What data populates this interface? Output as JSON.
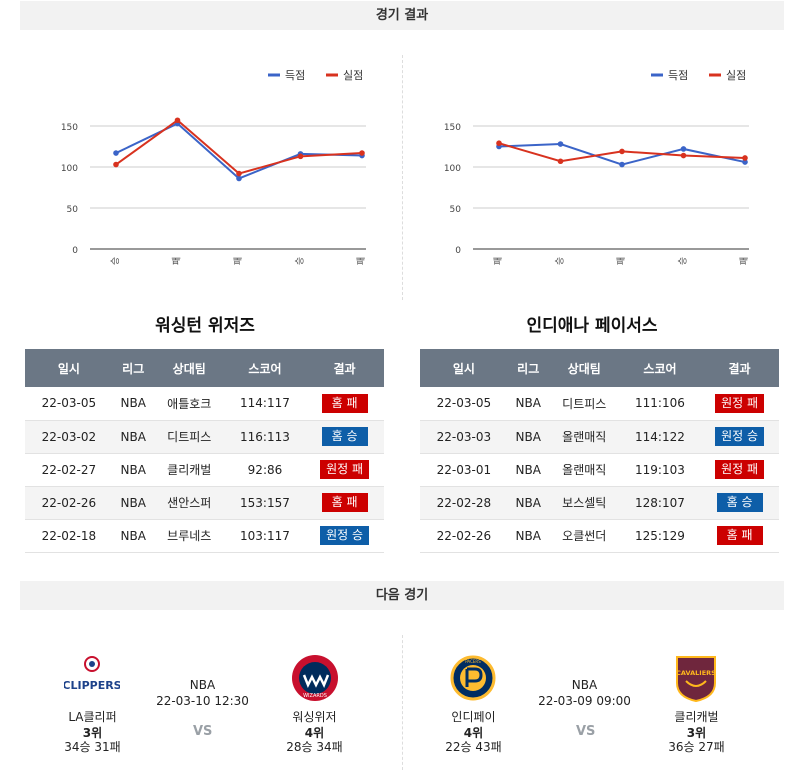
{
  "sections": {
    "results_title": "경기 결과",
    "next_title": "다음 경기"
  },
  "charts": [
    {
      "legend": {
        "scored": "득점",
        "conceded": "실점"
      },
      "colors": {
        "scored": "#3b64c8",
        "conceded": "#d8321f"
      },
      "y_ticks": [
        "0",
        "50",
        "100",
        "150"
      ],
      "x_labels": [
        "승",
        "패",
        "패",
        "승",
        "패"
      ]
    },
    {
      "legend": {
        "scored": "득점",
        "conceded": "실점"
      },
      "colors": {
        "scored": "#3b64c8",
        "conceded": "#d8321f"
      },
      "y_ticks": [
        "0",
        "50",
        "100",
        "150"
      ],
      "x_labels": [
        "패",
        "승",
        "패",
        "승",
        "패"
      ]
    }
  ],
  "chart_data": [
    {
      "type": "line",
      "categories": [
        "승",
        "패",
        "패",
        "승",
        "패"
      ],
      "series": [
        {
          "name": "득점",
          "values": [
            117,
            153,
            86,
            116,
            114
          ]
        },
        {
          "name": "실점",
          "values": [
            103,
            157,
            92,
            113,
            117
          ]
        }
      ],
      "ylim": [
        0,
        150
      ],
      "legend": "top-right",
      "grid": true
    },
    {
      "type": "line",
      "categories": [
        "패",
        "승",
        "패",
        "승",
        "패"
      ],
      "series": [
        {
          "name": "득점",
          "values": [
            125,
            128,
            103,
            122,
            106
          ]
        },
        {
          "name": "실점",
          "values": [
            129,
            107,
            119,
            114,
            111
          ]
        }
      ],
      "ylim": [
        0,
        150
      ],
      "legend": "top-right",
      "grid": true
    }
  ],
  "teams": [
    {
      "name": "워싱턴 위저즈",
      "headers": [
        "일시",
        "리그",
        "상대팀",
        "스코어",
        "결과"
      ],
      "rows": [
        {
          "date": "22-03-05",
          "league": "NBA",
          "opponent": "애틀호크",
          "score": "114:117",
          "result": "홈 패",
          "win": false
        },
        {
          "date": "22-03-02",
          "league": "NBA",
          "opponent": "디트피스",
          "score": "116:113",
          "result": "홈 승",
          "win": true
        },
        {
          "date": "22-02-27",
          "league": "NBA",
          "opponent": "클리캐벌",
          "score": "92:86",
          "result": "원정 패",
          "win": false
        },
        {
          "date": "22-02-26",
          "league": "NBA",
          "opponent": "샌안스퍼",
          "score": "153:157",
          "result": "홈 패",
          "win": false
        },
        {
          "date": "22-02-18",
          "league": "NBA",
          "opponent": "브루네츠",
          "score": "103:117",
          "result": "원정 승",
          "win": true
        }
      ]
    },
    {
      "name": "인디애나 페이서스",
      "headers": [
        "일시",
        "리그",
        "상대팀",
        "스코어",
        "결과"
      ],
      "rows": [
        {
          "date": "22-03-05",
          "league": "NBA",
          "opponent": "디트피스",
          "score": "111:106",
          "result": "원정 패",
          "win": false
        },
        {
          "date": "22-03-03",
          "league": "NBA",
          "opponent": "올랜매직",
          "score": "114:122",
          "result": "원정 승",
          "win": true
        },
        {
          "date": "22-03-01",
          "league": "NBA",
          "opponent": "올랜매직",
          "score": "119:103",
          "result": "원정 패",
          "win": false
        },
        {
          "date": "22-02-28",
          "league": "NBA",
          "opponent": "보스셀틱",
          "score": "128:107",
          "result": "홈 승",
          "win": true
        },
        {
          "date": "22-02-26",
          "league": "NBA",
          "opponent": "오클썬더",
          "score": "125:129",
          "result": "홈 패",
          "win": false
        }
      ]
    }
  ],
  "next_games": [
    {
      "league": "NBA",
      "datetime": "22-03-10 12:30",
      "vs": "VS",
      "home": {
        "name": "LA클리퍼",
        "rank": "3위",
        "record": "34승 31패",
        "logo_text": "CLIPPERS"
      },
      "away": {
        "name": "워싱위저",
        "rank": "4위",
        "record": "28승 34패",
        "logo_text": "WIZARDS"
      }
    },
    {
      "league": "NBA",
      "datetime": "22-03-09 09:00",
      "vs": "VS",
      "home": {
        "name": "인디페이",
        "rank": "4위",
        "record": "22승 43패",
        "logo_text": "PACERS"
      },
      "away": {
        "name": "클리캐벌",
        "rank": "3위",
        "record": "36승 27패",
        "logo_text": "CAVALIERS"
      }
    }
  ]
}
